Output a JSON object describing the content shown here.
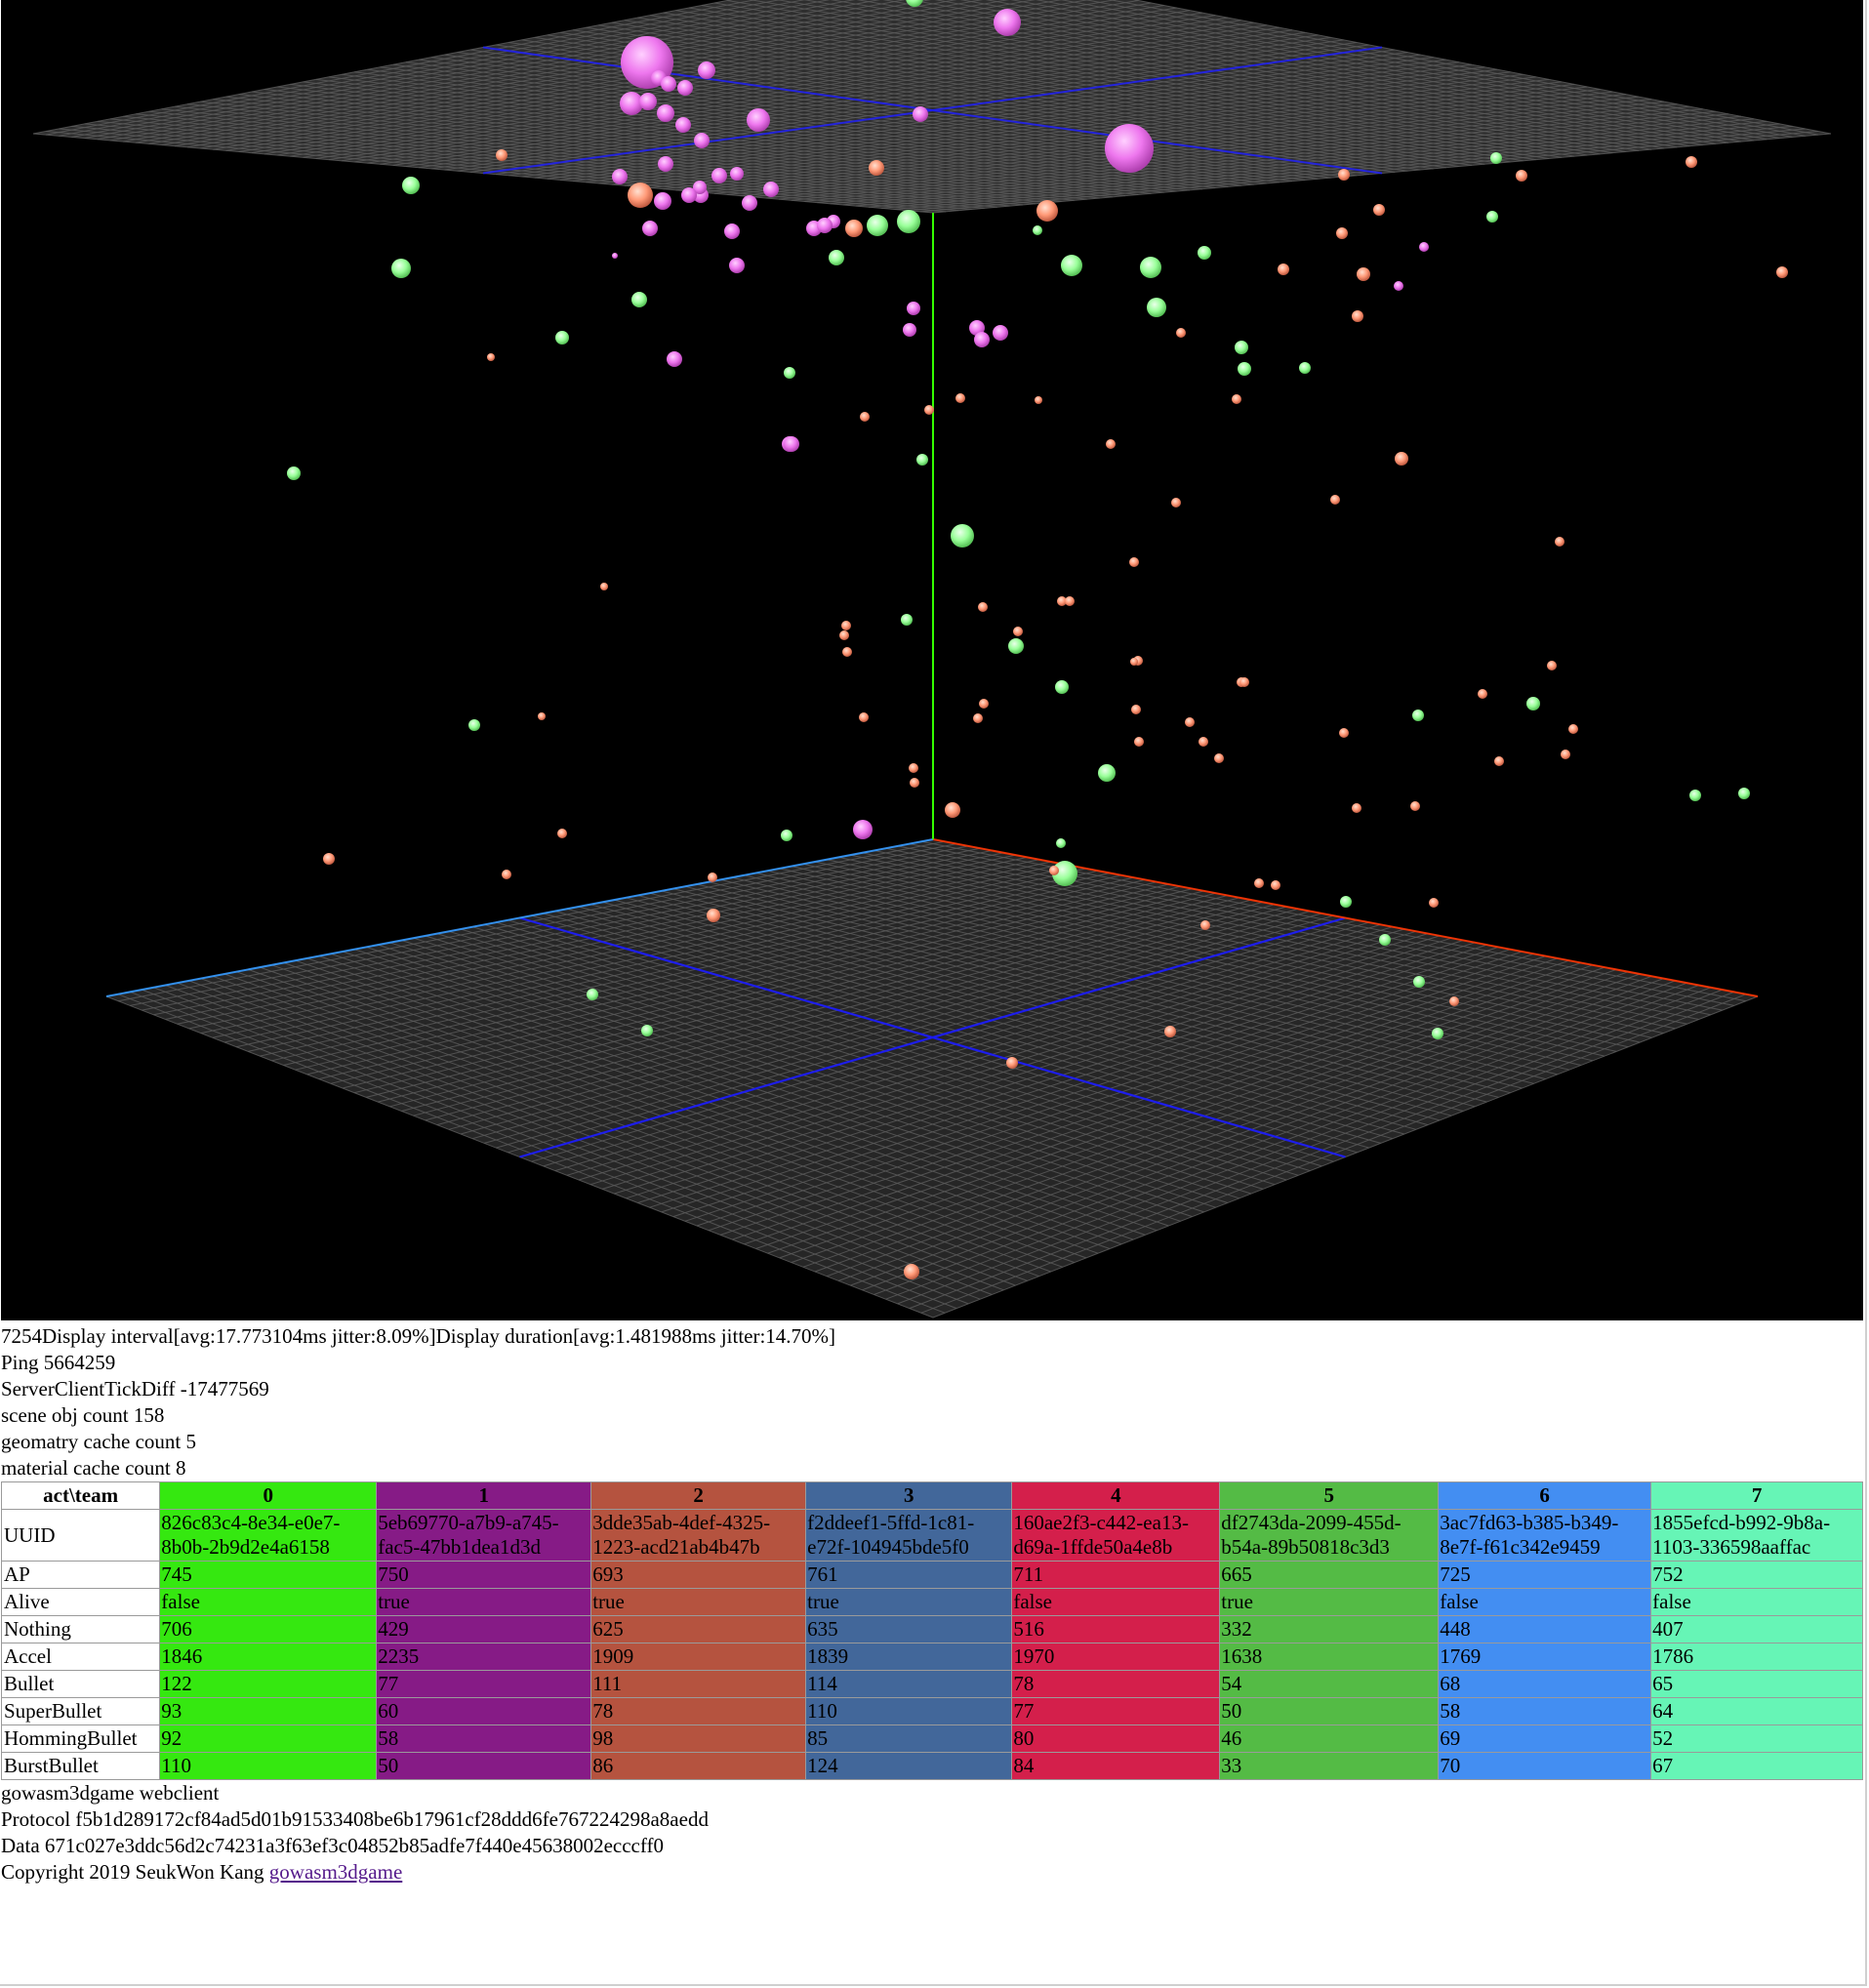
{
  "stats_lines": [
    "7254Display interval[avg:17.773104ms jitter:8.09%]Display duration[avg:1.481988ms jitter:14.70%]",
    "Ping 5664259",
    "ServerClientTickDiff -17477569",
    "scene obj count 158",
    "geomatry cache count 5",
    "material cache count 8"
  ],
  "table": {
    "corner_label": "act\\team",
    "teams": [
      {
        "id": "0",
        "color": "#35e810",
        "uuid": "826c83c4-8e34-e0e7-8b0b-2b9d2e4a6158",
        "ap": "745",
        "alive": "false",
        "nothing": "706",
        "accel": "1846",
        "bullet": "122",
        "superbullet": "93",
        "hommingbullet": "92",
        "burstbullet": "110"
      },
      {
        "id": "1",
        "color": "#861b86",
        "uuid": "5eb69770-a7b9-a745-fac5-47bb1dea1d3d",
        "ap": "750",
        "alive": "true",
        "nothing": "429",
        "accel": "2235",
        "bullet": "77",
        "superbullet": "60",
        "hommingbullet": "58",
        "burstbullet": "50"
      },
      {
        "id": "2",
        "color": "#b5533f",
        "uuid": "3dde35ab-4def-4325-1223-acd21ab4b47b",
        "ap": "693",
        "alive": "true",
        "nothing": "625",
        "accel": "1909",
        "bullet": "111",
        "superbullet": "78",
        "hommingbullet": "98",
        "burstbullet": "86"
      },
      {
        "id": "3",
        "color": "#42679a",
        "uuid": "f2ddeef1-5ffd-1c81-e72f-104945bde5f0",
        "ap": "761",
        "alive": "true",
        "nothing": "635",
        "accel": "1839",
        "bullet": "114",
        "superbullet": "110",
        "hommingbullet": "85",
        "burstbullet": "124"
      },
      {
        "id": "4",
        "color": "#d41f4b",
        "uuid": "160ae2f3-c442-ea13-d69a-1ffde50a4e8b",
        "ap": "711",
        "alive": "false",
        "nothing": "516",
        "accel": "1970",
        "bullet": "78",
        "superbullet": "77",
        "hommingbullet": "80",
        "burstbullet": "84"
      },
      {
        "id": "5",
        "color": "#54bb45",
        "uuid": "df2743da-2099-455d-b54a-89b50818c3d3",
        "ap": "665",
        "alive": "true",
        "nothing": "332",
        "accel": "1638",
        "bullet": "54",
        "superbullet": "50",
        "hommingbullet": "46",
        "burstbullet": "33"
      },
      {
        "id": "6",
        "color": "#438ef2",
        "uuid": "3ac7fd63-b385-b349-8e7f-f61c342e9459",
        "ap": "725",
        "alive": "false",
        "nothing": "448",
        "accel": "1769",
        "bullet": "68",
        "superbullet": "58",
        "hommingbullet": "69",
        "burstbullet": "70"
      },
      {
        "id": "7",
        "color": "#66f5b6",
        "uuid": "1855efcd-b992-9b8a-1103-336598aaffac",
        "ap": "752",
        "alive": "false",
        "nothing": "407",
        "accel": "1786",
        "bullet": "65",
        "superbullet": "64",
        "hommingbullet": "52",
        "burstbullet": "67"
      }
    ],
    "rows": [
      {
        "label": "UUID",
        "key": "uuid"
      },
      {
        "label": "AP",
        "key": "ap"
      },
      {
        "label": "Alive",
        "key": "alive"
      },
      {
        "label": "Nothing",
        "key": "nothing"
      },
      {
        "label": "Accel",
        "key": "accel"
      },
      {
        "label": "Bullet",
        "key": "bullet"
      },
      {
        "label": "SuperBullet",
        "key": "superbullet"
      },
      {
        "label": "HommingBullet",
        "key": "hommingbullet"
      },
      {
        "label": "BurstBullet",
        "key": "burstbullet"
      }
    ]
  },
  "footer": {
    "app_name": "gowasm3dgame webclient",
    "protocol": "Protocol f5b1d289172cf84ad5d01b91533408be6b17961cf28ddd6fe767224298a8aedd",
    "data": "Data 671c027e3ddc56d2c74231a3f63ef3c04852b85adfe7f440e45638002ecccff0",
    "copyright": "Copyright 2019 SeukWon Kang ",
    "link_text": "gowasm3dgame"
  },
  "scene_colors": {
    "background": "#000000",
    "grid": "#5a5a5a",
    "axis_blue": "#1a1aff",
    "axis_red": "#ff3300",
    "axis_green": "#33ff00",
    "ball_pink": "#ee77ee",
    "ball_green": "#99ff99",
    "ball_salmon": "#ff9977"
  }
}
